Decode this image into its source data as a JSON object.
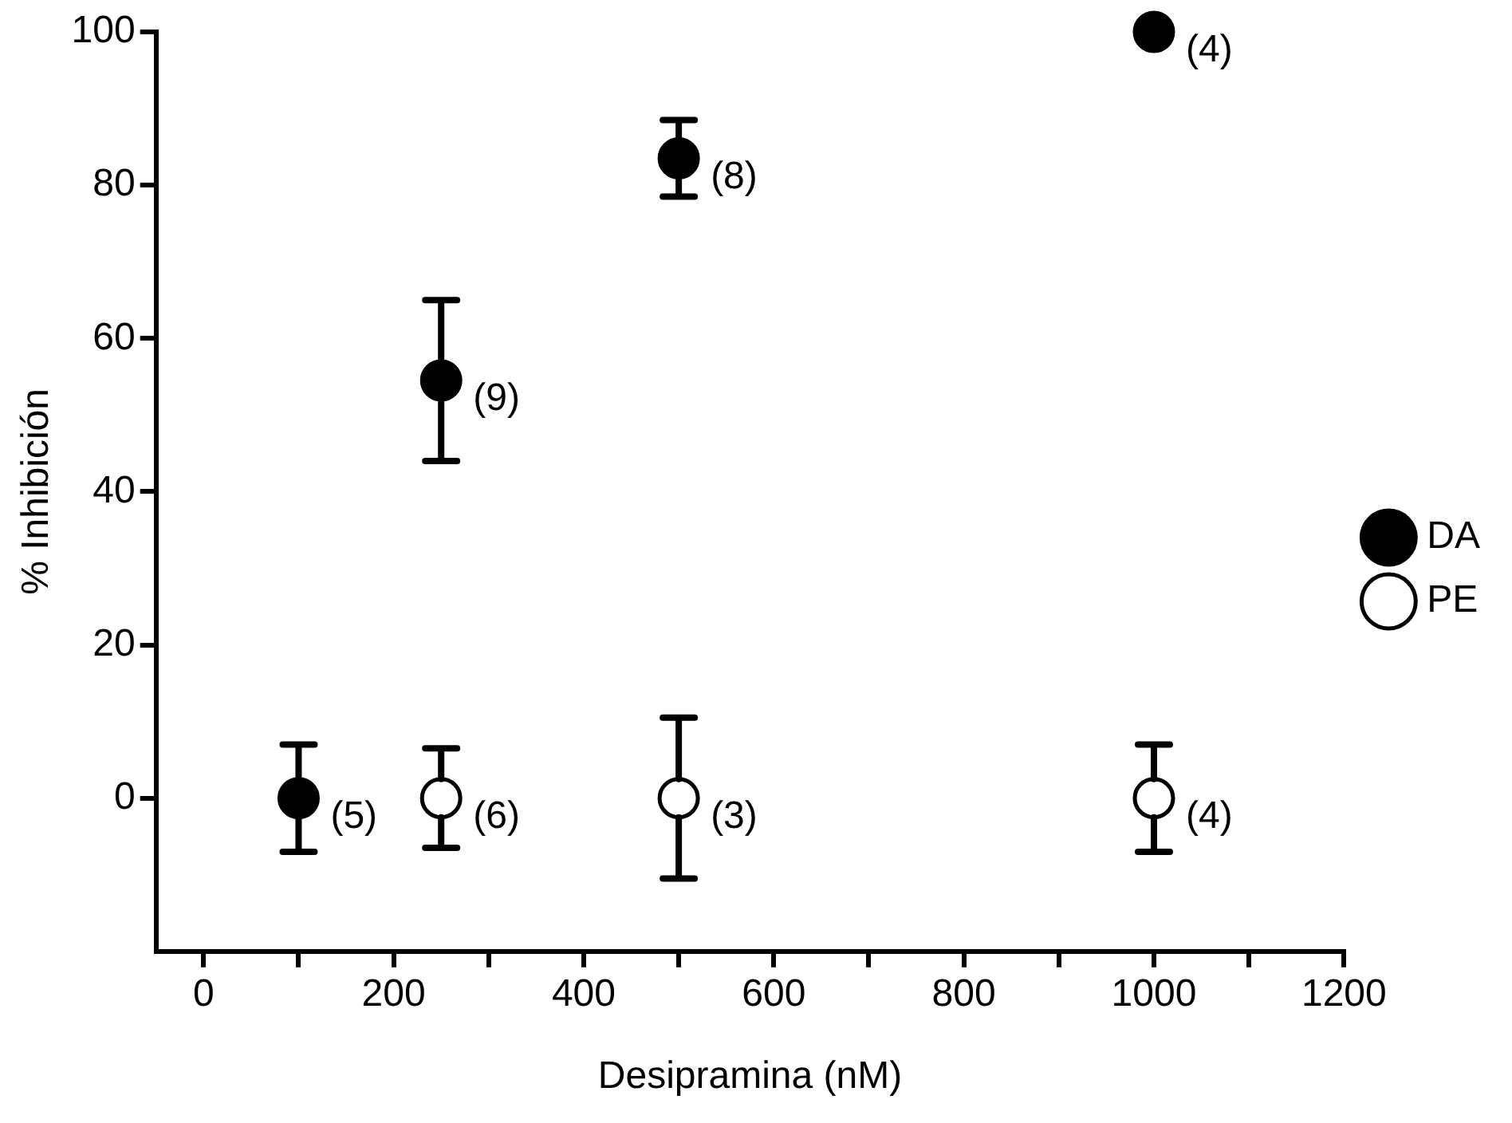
{
  "chart_data": {
    "type": "scatter",
    "xlabel": "Desipramina (nM)",
    "ylabel": "% Inhibición",
    "xlim": [
      -50,
      1200
    ],
    "ylim": [
      -20,
      100
    ],
    "xticks": [
      0,
      {
        "value": 100,
        "label": null
      },
      200,
      {
        "value": 300,
        "label": null
      },
      400,
      {
        "value": 500,
        "label": null
      },
      600,
      {
        "value": 700,
        "label": null
      },
      800,
      {
        "value": 900,
        "label": null
      },
      1000,
      {
        "value": 1100,
        "label": null
      },
      1200
    ],
    "yticks": [
      0,
      20,
      40,
      60,
      80,
      100
    ],
    "series": [
      {
        "name": "DA",
        "color": "#000000",
        "x": [
          100,
          250,
          500,
          1000
        ],
        "values": [
          0,
          54.5,
          83.5,
          100
        ],
        "errors": [
          7,
          10.5,
          5,
          null
        ]
      },
      {
        "name": "PE",
        "color": "#ffffff",
        "x": [
          250,
          500,
          1000
        ],
        "values": [
          0,
          0,
          0
        ],
        "errors": [
          6.5,
          10.5,
          7
        ]
      }
    ],
    "marker": "circle",
    "legend": "right",
    "grid": false,
    "annotations": [
      {
        "text": "(5)",
        "x": 100,
        "y": 0
      },
      {
        "text": "(9)",
        "x": 250,
        "y": 54.5
      },
      {
        "text": "(8)",
        "x": 500,
        "y": 83.5
      },
      {
        "text": "(4)",
        "x": 1000,
        "y": 100
      },
      {
        "text": "(6)",
        "x": 250,
        "y": 0
      },
      {
        "text": "(3)",
        "x": 500,
        "y": 0
      },
      {
        "text": "(4)",
        "x": 1000,
        "y": 0
      }
    ]
  }
}
